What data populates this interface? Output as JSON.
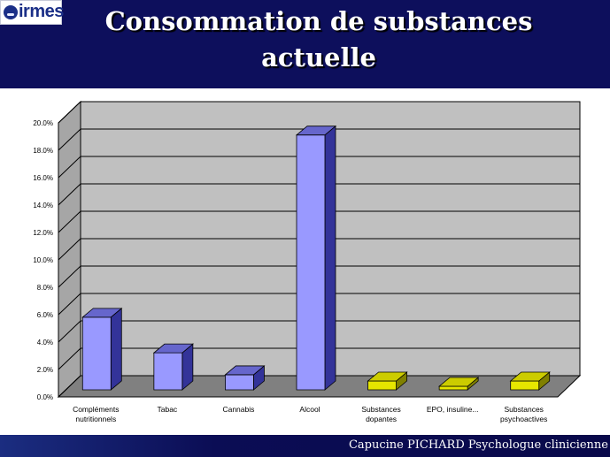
{
  "header": {
    "logo_text": "irmes",
    "title_line1": "Consommation de substances",
    "title_line2": "actuelle"
  },
  "footer": {
    "text": "Capucine PICHARD Psychologue clinicienne"
  },
  "chart_data": {
    "type": "bar",
    "categories": [
      [
        "Compléments",
        "nutritionnels"
      ],
      [
        "Tabac"
      ],
      [
        "Cannabis"
      ],
      [
        "Alcool"
      ],
      [
        "Substances",
        "dopantes"
      ],
      [
        "EPO, insuline..."
      ],
      [
        "Substances",
        "psychoactives"
      ]
    ],
    "values": [
      5.3,
      2.7,
      1.1,
      18.6,
      0.3,
      0.0,
      0.2
    ],
    "ylim": [
      0,
      20
    ],
    "yticks": [
      "0.0%",
      "2.0%",
      "4.0%",
      "6.0%",
      "8.0%",
      "10.0%",
      "12.0%",
      "14.0%",
      "16.0%",
      "18.0%",
      "20.0%"
    ],
    "grid": true,
    "colors": {
      "bar_front": "#9999ff",
      "bar_side": "#333399",
      "bar_top": "#6666cc",
      "small_front": "#e6e600",
      "small_side": "#808000",
      "small_top": "#cccc00",
      "wall": "#c0c0c0",
      "floor": "#808080",
      "side_wall": "#a6a6a6"
    }
  }
}
